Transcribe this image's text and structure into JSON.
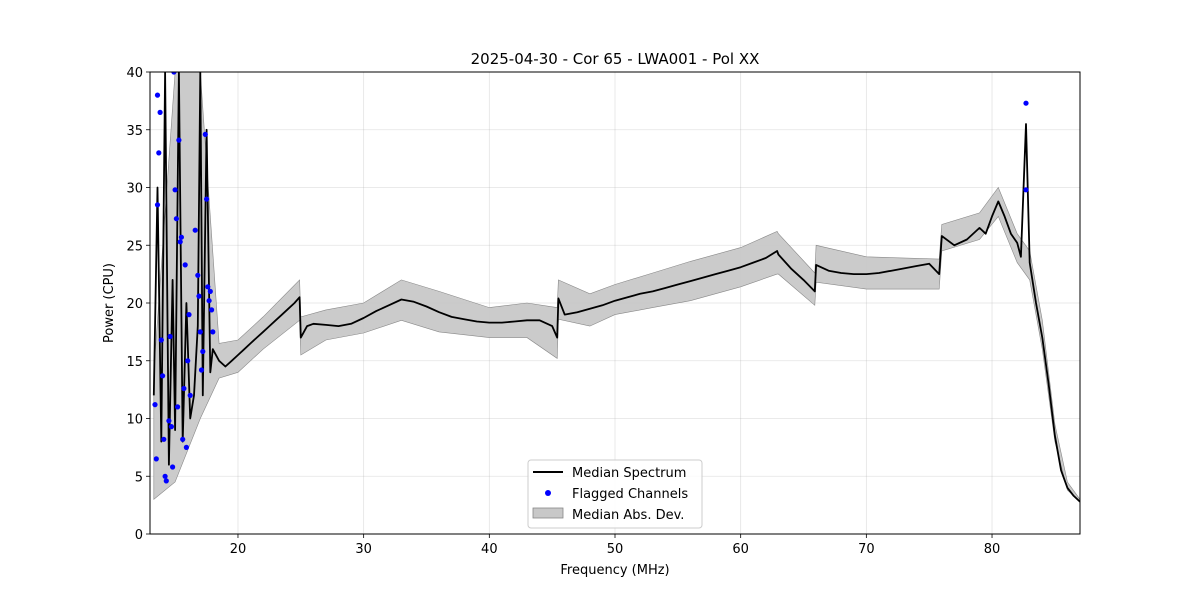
{
  "chart_data": {
    "type": "line",
    "title": "2025-04-30 - Cor 65 - LWA001 - Pol XX",
    "xlabel": "Frequency (MHz)",
    "ylabel": "Power (CPU)",
    "xlim": [
      13,
      87
    ],
    "ylim": [
      0,
      40
    ],
    "xticks": [
      20,
      30,
      40,
      50,
      60,
      70,
      80
    ],
    "yticks": [
      0,
      5,
      10,
      15,
      20,
      25,
      30,
      35,
      40
    ],
    "grid": true,
    "legend_placement": "lower-center",
    "legend": [
      "Median Spectrum",
      "Flagged Channels",
      "Median Abs. Dev."
    ],
    "colors": {
      "median": "#000000",
      "flagged": "#0000ff",
      "mad_fill": "#c8c8c8",
      "mad_edge": "#888888"
    },
    "series": [
      {
        "name": "Median Spectrum",
        "kind": "line",
        "x": [
          13.3,
          13.6,
          13.9,
          14.2,
          14.5,
          14.8,
          15.0,
          15.3,
          15.6,
          15.9,
          16.2,
          16.5,
          16.8,
          17.0,
          17.2,
          17.5,
          17.8,
          18.0,
          18.5,
          19.0,
          19.5,
          20.0,
          20.5,
          21.0,
          21.5,
          22.0,
          22.5,
          23.0,
          23.5,
          24.0,
          24.5,
          24.9,
          25.0,
          25.5,
          26.0,
          27.0,
          28.0,
          29.0,
          30.0,
          31.0,
          32.0,
          33.0,
          34.0,
          35.0,
          36.0,
          37.0,
          38.0,
          39.0,
          40.0,
          41.0,
          42.0,
          43.0,
          44.0,
          45.0,
          45.4,
          45.5,
          46.0,
          47.0,
          48.0,
          49.0,
          50.0,
          51.0,
          52.0,
          53.0,
          54.0,
          55.0,
          56.0,
          57.0,
          58.0,
          59.0,
          60.0,
          61.0,
          62.0,
          62.9,
          63.0,
          64.0,
          65.0,
          65.9,
          66.0,
          67.0,
          68.0,
          69.0,
          70.0,
          71.0,
          72.0,
          73.0,
          74.0,
          75.0,
          75.8,
          76.0,
          77.0,
          78.0,
          79.0,
          79.5,
          80.0,
          80.5,
          81.0,
          81.5,
          82.0,
          82.3,
          82.7,
          83.0,
          83.5,
          84.0,
          84.5,
          85.0,
          85.5,
          86.0,
          86.5,
          87.0
        ],
        "y": [
          12.0,
          30.0,
          8.0,
          40.0,
          6.0,
          22.0,
          9.0,
          40.0,
          8.0,
          20.0,
          10.0,
          12.0,
          18.0,
          40.0,
          12.0,
          35.0,
          14.0,
          16.0,
          15.0,
          14.5,
          15.0,
          15.5,
          16.0,
          16.5,
          17.0,
          17.5,
          18.0,
          18.5,
          19.0,
          19.5,
          20.0,
          20.5,
          17.0,
          18.0,
          18.2,
          18.1,
          18.0,
          18.2,
          18.7,
          19.3,
          19.8,
          20.3,
          20.1,
          19.7,
          19.2,
          18.8,
          18.6,
          18.4,
          18.3,
          18.3,
          18.4,
          18.5,
          18.5,
          18.0,
          17.0,
          20.4,
          19.0,
          19.2,
          19.5,
          19.8,
          20.2,
          20.5,
          20.8,
          21.0,
          21.3,
          21.6,
          21.9,
          22.2,
          22.5,
          22.8,
          23.1,
          23.5,
          23.9,
          24.5,
          24.2,
          23.0,
          22.0,
          21.0,
          23.3,
          22.8,
          22.6,
          22.5,
          22.5,
          22.6,
          22.8,
          23.0,
          23.2,
          23.4,
          22.5,
          25.8,
          25.0,
          25.5,
          26.5,
          26.0,
          27.5,
          28.8,
          27.5,
          26.0,
          25.2,
          24.0,
          35.5,
          23.5,
          20.0,
          17.0,
          13.0,
          8.5,
          5.5,
          4.0,
          3.3,
          2.8
        ]
      },
      {
        "name": "Median Abs. Dev.",
        "kind": "band",
        "x": [
          13.3,
          15.0,
          17.0,
          18.5,
          20.0,
          22.0,
          24.9,
          25.0,
          27.0,
          30.0,
          33.0,
          36.0,
          40.0,
          43.0,
          45.4,
          45.5,
          48.0,
          50.0,
          53.0,
          56.0,
          60.0,
          62.9,
          63.0,
          65.9,
          66.0,
          70.0,
          75.8,
          76.0,
          79.0,
          80.5,
          82.0,
          83.0,
          84.0,
          85.0,
          86.0,
          87.0
        ],
        "lower": [
          3.0,
          4.5,
          10.0,
          13.5,
          14.0,
          16.0,
          18.5,
          15.5,
          16.8,
          17.4,
          18.5,
          17.5,
          17.0,
          17.0,
          15.2,
          18.6,
          18.0,
          19.0,
          19.6,
          20.2,
          21.4,
          22.5,
          22.5,
          19.8,
          21.8,
          21.2,
          21.2,
          24.5,
          25.5,
          27.5,
          23.5,
          22.0,
          16.0,
          8.0,
          3.8,
          2.8
        ],
        "upper": [
          14.0,
          40.0,
          40.0,
          16.5,
          16.8,
          18.8,
          22.0,
          18.8,
          19.4,
          20.0,
          22.0,
          21.0,
          19.6,
          20.0,
          19.6,
          22.0,
          20.8,
          21.6,
          22.6,
          23.6,
          24.8,
          26.2,
          26.0,
          22.6,
          25.0,
          24.0,
          23.8,
          26.8,
          27.8,
          30.0,
          26.0,
          24.5,
          18.5,
          9.5,
          4.5,
          3.0
        ]
      },
      {
        "name": "Flagged Channels",
        "kind": "scatter",
        "x": [
          13.4,
          13.5,
          13.6,
          13.6,
          13.7,
          13.8,
          13.9,
          14.0,
          14.1,
          14.2,
          14.3,
          14.5,
          14.6,
          14.7,
          14.8,
          14.9,
          15.0,
          15.1,
          15.2,
          15.3,
          15.4,
          15.5,
          15.6,
          15.7,
          15.8,
          15.9,
          16.0,
          16.1,
          16.2,
          16.6,
          16.8,
          16.9,
          17.0,
          17.1,
          17.2,
          17.4,
          17.5,
          17.6,
          17.7,
          17.8,
          17.9,
          18.0,
          82.7,
          82.7
        ],
        "y": [
          11.2,
          6.5,
          38.0,
          28.5,
          33.0,
          36.5,
          16.8,
          13.7,
          8.2,
          5.0,
          4.6,
          9.8,
          17.1,
          9.3,
          5.8,
          40.0,
          29.8,
          27.3,
          11.0,
          34.1,
          25.3,
          25.7,
          8.2,
          12.6,
          23.3,
          7.5,
          15.0,
          19.0,
          12.0,
          26.3,
          22.4,
          20.6,
          17.5,
          14.2,
          15.8,
          34.6,
          29.0,
          21.4,
          20.2,
          21.0,
          19.4,
          17.5,
          37.3,
          29.8
        ]
      }
    ]
  }
}
